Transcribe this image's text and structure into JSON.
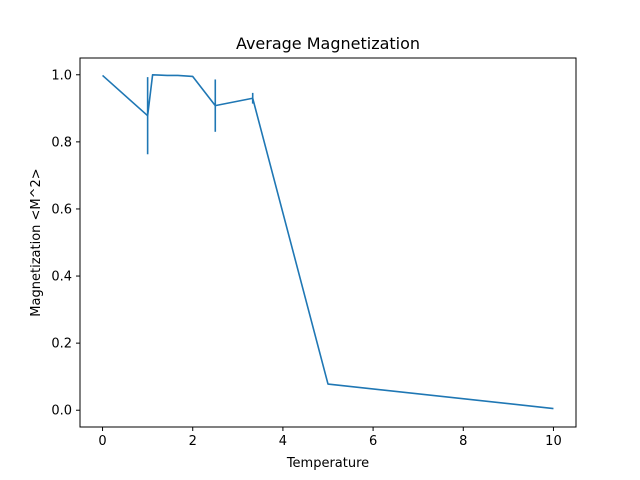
{
  "chart_data": {
    "type": "line",
    "title": "Average Magnetization",
    "xlabel": "Temperature",
    "ylabel": "Magnetization <M^2>",
    "xlim": [
      -0.5,
      10.5
    ],
    "ylim": [
      -0.05,
      1.05
    ],
    "xticks": [
      0,
      2,
      4,
      6,
      8,
      10
    ],
    "yticks": [
      0.0,
      0.2,
      0.4,
      0.6,
      0.8,
      1.0
    ],
    "xtick_labels": [
      "0",
      "2",
      "4",
      "6",
      "8",
      "10"
    ],
    "ytick_labels": [
      "0.0",
      "0.2",
      "0.4",
      "0.6",
      "0.8",
      "1.0"
    ],
    "grid": false,
    "series": [
      {
        "color": "#1f77b4",
        "x": [
          0.0,
          1.0,
          1.11,
          1.25,
          1.43,
          1.67,
          2.0,
          2.5,
          3.33,
          5.0,
          10.0
        ],
        "y": [
          0.998,
          0.878,
          1.0,
          0.999,
          0.998,
          0.998,
          0.995,
          0.908,
          0.93,
          0.078,
          0.005
        ],
        "yerr": [
          0.0,
          0.115,
          0.0,
          0.0,
          0.0,
          0.0,
          0.0,
          0.078,
          0.016,
          0.0,
          0.0
        ]
      }
    ]
  }
}
